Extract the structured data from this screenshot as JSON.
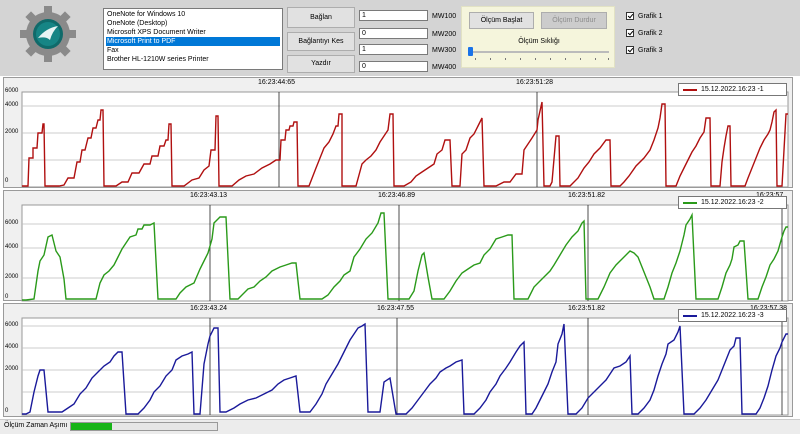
{
  "printers": {
    "items": [
      "OneNote for Windows 10",
      "OneNote (Desktop)",
      "Microsoft XPS Document Writer",
      "Microsoft Print to PDF",
      "Fax",
      "Brother HL-1210W series Printer"
    ],
    "selected_index": 3
  },
  "buttons": {
    "connect": "Bağlan",
    "disconnect": "Bağlantıyı Kes",
    "print": "Yazdır"
  },
  "registers": [
    {
      "value": "1",
      "label": "MW100"
    },
    {
      "value": "0",
      "label": "MW200"
    },
    {
      "value": "1",
      "label": "MW300"
    },
    {
      "value": "0",
      "label": "MW400"
    }
  ],
  "measure": {
    "start": "Ölçüm Başlat",
    "stop": "Ölçüm Durdur",
    "period_label": "Ölçüm Sıklığı",
    "period_level": 0.0
  },
  "graph_toggles": [
    {
      "label": "Grafik 1",
      "checked": true
    },
    {
      "label": "Grafik 2",
      "checked": true
    },
    {
      "label": "Grafik 3",
      "checked": true
    }
  ],
  "charts": [
    {
      "legend": "15.12.2022.16:23 -1",
      "color": "#b01010",
      "timestamps": [
        "16:23:44:65",
        "16:23:51:28"
      ],
      "yticks": [
        "0",
        "2000",
        "4000",
        "6000"
      ]
    },
    {
      "legend": "15.12.2022.16:23 -2",
      "color": "#2a9a1a",
      "timestamps": [
        "16:23:43.13",
        "16:23:46.89",
        "16:23:51.82",
        "16:23:57"
      ],
      "yticks": [
        "0",
        "2000",
        "4000",
        "6000"
      ]
    },
    {
      "legend": "15.12.2022.16:23 -3",
      "color": "#1a1a9a",
      "timestamps": [
        "16:23:43.24",
        "16:23:47.55",
        "16:23:51.82",
        "16:23:57.38"
      ],
      "yticks": [
        "0",
        "2000",
        "4000",
        "6000"
      ]
    }
  ],
  "status": {
    "label": "Ölçüm Zaman Aşımı",
    "progress": 0.28
  }
}
